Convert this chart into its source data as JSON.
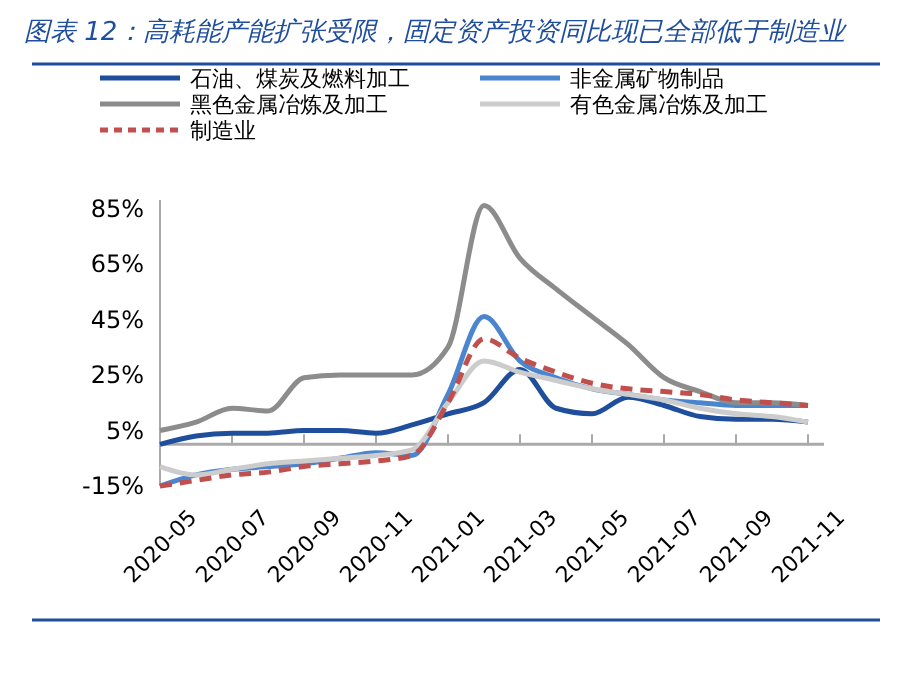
{
  "chart_data": {
    "type": "line",
    "title": "图表 12：高耗能产能扩张受限，固定资产投资同比现已全部低于制造业",
    "categories": [
      "2020-05",
      null,
      "2020-07",
      null,
      "2020-09",
      null,
      "2020-11",
      null,
      "2021-01",
      null,
      "2021-03",
      null,
      "2021-05",
      null,
      "2021-07",
      null,
      "2021-09",
      null,
      "2021-11"
    ],
    "series": [
      {
        "name": "石油、煤炭及燃料加工",
        "color": "#1f4e9c",
        "values": [
          0,
          3,
          4,
          4,
          5,
          5,
          4,
          7,
          11,
          15,
          27,
          13,
          11,
          17,
          14,
          10,
          9,
          9,
          8
        ]
      },
      {
        "name": "非金属矿物制品",
        "color": "#4a86d0",
        "values": [
          -15,
          -11,
          -9,
          -8,
          -7,
          -5,
          -3,
          -4,
          18,
          46,
          30,
          24,
          20,
          18,
          16,
          15,
          14,
          14,
          14
        ]
      },
      {
        "name": "黑色金属冶炼及加工",
        "color": "#8c8c8c",
        "values": [
          5,
          8,
          13,
          12,
          24,
          25,
          25,
          25,
          35,
          86,
          67,
          56,
          46,
          36,
          24,
          19,
          15,
          15,
          14
        ]
      },
      {
        "name": "有色金属冶炼及加工",
        "color": "#cccccc",
        "values": [
          -8,
          -11,
          -9,
          -7,
          -6,
          -5,
          -4,
          -2,
          15,
          30,
          26,
          23,
          20,
          18,
          16,
          13,
          11,
          10,
          8
        ]
      },
      {
        "name": "制造业",
        "color": "#c0504d",
        "line_style": "dashed",
        "values": [
          -15,
          -13,
          -11,
          -10,
          -8,
          -7,
          -6,
          -4,
          15,
          38,
          31,
          26,
          22,
          20,
          19,
          18,
          16,
          15,
          14
        ]
      }
    ],
    "ylim": [
      -15,
      88
    ],
    "yticks": [
      {
        "value": -15,
        "label": "-15%"
      },
      {
        "value": 5,
        "label": "5%"
      },
      {
        "value": 25,
        "label": "25%"
      },
      {
        "value": 45,
        "label": "45%"
      },
      {
        "value": 65,
        "label": "65%"
      },
      {
        "value": 85,
        "label": "85%"
      }
    ],
    "grid": false,
    "legend": "top",
    "line_style": "solid"
  }
}
